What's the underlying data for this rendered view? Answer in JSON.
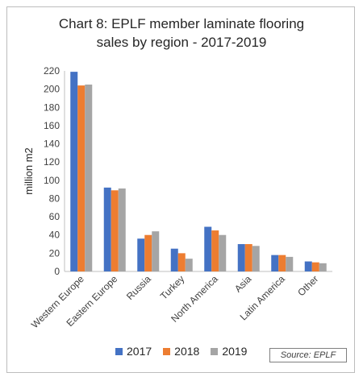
{
  "chart_data": {
    "type": "bar",
    "title_line1": "Chart 8: EPLF member laminate flooring",
    "title_line2": "sales by region - 2017-2019",
    "ylabel": "million m2",
    "ylim": [
      0,
      220
    ],
    "yticks": [
      0,
      20,
      40,
      60,
      80,
      100,
      120,
      140,
      160,
      180,
      200,
      220
    ],
    "categories": [
      "Western Europe",
      "Eastern Europe",
      "Russia",
      "Turkey",
      "North America",
      "Asia",
      "Latin America",
      "Other"
    ],
    "series": [
      {
        "name": "2017",
        "color": "#4472C4",
        "values": [
          219,
          92,
          36,
          25,
          49,
          30,
          18,
          11
        ]
      },
      {
        "name": "2018",
        "color": "#ED7D31",
        "values": [
          204,
          89,
          40,
          20,
          45,
          30,
          18,
          10
        ]
      },
      {
        "name": "2019",
        "color": "#A5A5A5",
        "values": [
          205,
          91,
          44,
          14,
          40,
          28,
          16,
          9
        ]
      }
    ],
    "legend_position": "bottom",
    "grid": false,
    "source": "Source: EPLF"
  }
}
